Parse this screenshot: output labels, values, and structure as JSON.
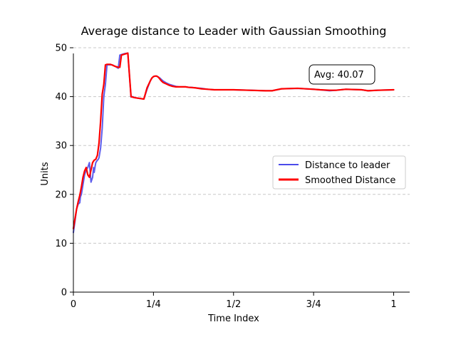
{
  "chart_data": {
    "type": "line",
    "title": "Average distance to Leader with Gaussian Smoothing",
    "xlabel": "Time Index",
    "ylabel": "Units",
    "xlim": [
      0,
      1.05
    ],
    "ylim": [
      0,
      50
    ],
    "x_ticks": [
      {
        "value": 0,
        "label": "0"
      },
      {
        "value": 0.25,
        "label": "1/4"
      },
      {
        "value": 0.5,
        "label": "1/2"
      },
      {
        "value": 0.75,
        "label": "3/4"
      },
      {
        "value": 1.0,
        "label": "1"
      }
    ],
    "y_ticks": [
      0,
      10,
      20,
      30,
      40,
      50
    ],
    "grid": "y-dashed",
    "legend_position": "center-right",
    "annotation": "Avg: 40.07",
    "series": [
      {
        "name": "Distance to leader",
        "color": "#4b4bea",
        "x": [
          0.0,
          0.005,
          0.01,
          0.015,
          0.02,
          0.022,
          0.025,
          0.03,
          0.035,
          0.04,
          0.045,
          0.05,
          0.055,
          0.06,
          0.063,
          0.065,
          0.068,
          0.07,
          0.075,
          0.078,
          0.08,
          0.085,
          0.09,
          0.095,
          0.1,
          0.105,
          0.11,
          0.112,
          0.115,
          0.12,
          0.125,
          0.13,
          0.135,
          0.14,
          0.145,
          0.15,
          0.16,
          0.17,
          0.18,
          0.185,
          0.19,
          0.2,
          0.21,
          0.22,
          0.23,
          0.24,
          0.245,
          0.25,
          0.255,
          0.26,
          0.262,
          0.265,
          0.27,
          0.275,
          0.28,
          0.29,
          0.3,
          0.31,
          0.32,
          0.33,
          0.34,
          0.35,
          0.36,
          0.37,
          0.38,
          0.4,
          0.42,
          0.44,
          0.46,
          0.48,
          0.5,
          0.55,
          0.6,
          0.62,
          0.65,
          0.7,
          0.75,
          0.77,
          0.8,
          0.82,
          0.85,
          0.9,
          0.92,
          0.95,
          1.0
        ],
        "y": [
          12.2,
          14.5,
          17.0,
          18.0,
          18.3,
          19.5,
          20.0,
          22.0,
          24.0,
          25.0,
          25.5,
          26.5,
          22.5,
          23.5,
          25.5,
          24.5,
          25.8,
          26.5,
          27.0,
          27.2,
          27.5,
          29.5,
          33.5,
          40.0,
          42.5,
          46.5,
          46.5,
          46.5,
          46.5,
          46.5,
          46.4,
          46.2,
          46.0,
          45.8,
          48.5,
          48.6,
          48.8,
          48.9,
          39.9,
          40.0,
          39.8,
          39.7,
          39.6,
          39.5,
          41.5,
          43.2,
          43.8,
          44.1,
          44.2,
          44.2,
          44.1,
          44.0,
          43.8,
          43.5,
          43.2,
          42.8,
          42.5,
          42.3,
          42.1,
          42.0,
          42.0,
          42.0,
          41.9,
          41.9,
          41.8,
          41.7,
          41.5,
          41.4,
          41.4,
          41.4,
          41.4,
          41.3,
          41.2,
          41.2,
          41.6,
          41.7,
          41.5,
          41.4,
          41.2,
          41.3,
          41.5,
          41.4,
          41.2,
          41.3,
          41.4
        ]
      },
      {
        "name": "Smoothed Distance",
        "color": "#ff0000",
        "x": [
          0.0,
          0.005,
          0.01,
          0.015,
          0.02,
          0.025,
          0.03,
          0.035,
          0.04,
          0.045,
          0.05,
          0.055,
          0.06,
          0.065,
          0.07,
          0.075,
          0.08,
          0.085,
          0.09,
          0.095,
          0.1,
          0.105,
          0.11,
          0.115,
          0.12,
          0.13,
          0.14,
          0.145,
          0.15,
          0.16,
          0.17,
          0.18,
          0.185,
          0.19,
          0.2,
          0.21,
          0.22,
          0.23,
          0.24,
          0.245,
          0.25,
          0.255,
          0.26,
          0.265,
          0.27,
          0.275,
          0.28,
          0.29,
          0.3,
          0.31,
          0.32,
          0.33,
          0.34,
          0.35,
          0.36,
          0.38,
          0.4,
          0.42,
          0.44,
          0.46,
          0.48,
          0.5,
          0.55,
          0.6,
          0.62,
          0.65,
          0.7,
          0.75,
          0.77,
          0.8,
          0.82,
          0.85,
          0.9,
          0.92,
          0.95,
          1.0
        ],
        "y": [
          13.0,
          15.0,
          17.0,
          18.5,
          19.8,
          21.5,
          23.5,
          24.8,
          25.5,
          24.0,
          23.5,
          25.0,
          26.5,
          27.0,
          27.2,
          28.0,
          30.5,
          35.0,
          40.5,
          42.5,
          46.5,
          46.6,
          46.6,
          46.6,
          46.5,
          46.2,
          46.0,
          46.0,
          48.5,
          48.7,
          48.9,
          40.0,
          39.9,
          39.8,
          39.7,
          39.6,
          39.5,
          41.8,
          43.2,
          43.8,
          44.1,
          44.2,
          44.2,
          44.0,
          43.6,
          43.2,
          42.9,
          42.6,
          42.3,
          42.1,
          42.0,
          42.0,
          42.0,
          42.0,
          41.9,
          41.8,
          41.6,
          41.5,
          41.4,
          41.4,
          41.4,
          41.4,
          41.3,
          41.2,
          41.2,
          41.6,
          41.7,
          41.5,
          41.4,
          41.3,
          41.3,
          41.5,
          41.4,
          41.2,
          41.3,
          41.4
        ]
      }
    ]
  }
}
